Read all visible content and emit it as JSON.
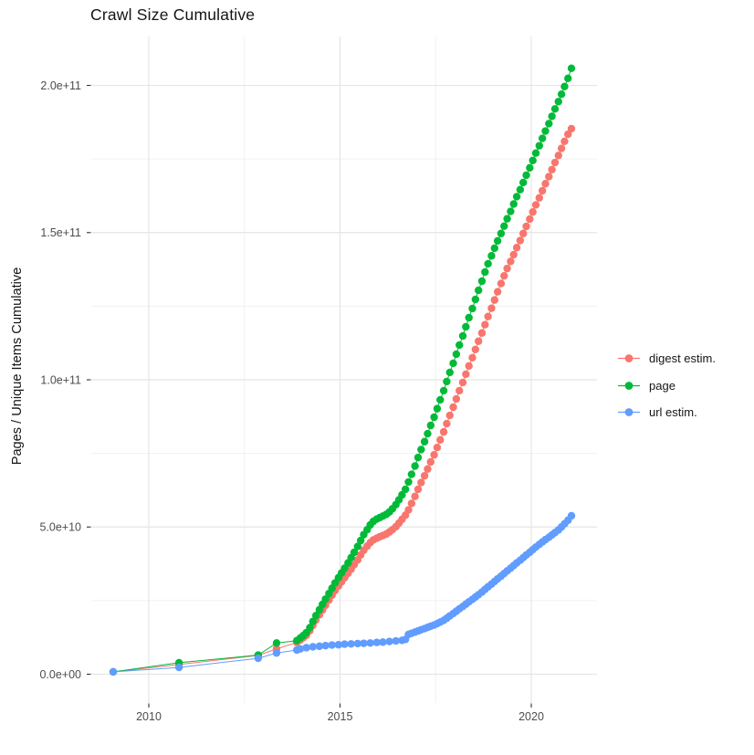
{
  "title": "Crawl Size Cumulative",
  "y_axis": {
    "title": "Pages / Unique Items Cumulative",
    "ticks": [
      {
        "label": "0.0e+00",
        "value": 0
      },
      {
        "label": "5.0e+10",
        "value": 50
      },
      {
        "label": "1.0e+11",
        "value": 100
      },
      {
        "label": "1.5e+11",
        "value": 150
      },
      {
        "label": "2.0e+11",
        "value": 200
      }
    ],
    "minor_ticks": [
      25,
      75,
      125,
      175
    ]
  },
  "x_axis": {
    "ticks": [
      {
        "label": "2010",
        "value": 2010
      },
      {
        "label": "2015",
        "value": 2015
      },
      {
        "label": "2020",
        "value": 2020
      }
    ],
    "minor_ticks": [
      2012.5,
      2017.5
    ]
  },
  "legend": {
    "items": [
      {
        "label": "digest estim.",
        "color": "#F8766D"
      },
      {
        "label": "page",
        "color": "#00BA38"
      },
      {
        "label": "url estim.",
        "color": "#619CFF"
      }
    ]
  },
  "chart_data": {
    "type": "line",
    "title": "Crawl Size Cumulative",
    "xlabel": "",
    "ylabel": "Pages / Unique Items Cumulative",
    "x_unit": "year (decimal)",
    "values_unit": "items, in billions (1e9); y tick 5.0e+10 = 50",
    "xlim": [
      2008.5,
      2021.6
    ],
    "ylim_e9": [
      -10,
      216
    ],
    "grid": true,
    "legend_position": "right",
    "series": [
      {
        "name": "digest estim.",
        "color": "#F8766D",
        "points": [
          [
            2009.07,
            0.8
          ],
          [
            2010.79,
            3.3
          ],
          [
            2012.86,
            6.4
          ],
          [
            2013.34,
            8.6
          ],
          [
            2013.87,
            10.8
          ],
          [
            2013.96,
            11.6
          ],
          [
            2014.04,
            12.4
          ],
          [
            2014.12,
            13.2
          ],
          [
            2014.21,
            14.8
          ],
          [
            2014.29,
            16.6
          ],
          [
            2014.37,
            18.4
          ],
          [
            2014.46,
            20.2
          ],
          [
            2014.54,
            21.8
          ],
          [
            2014.62,
            23.4
          ],
          [
            2014.71,
            25.2
          ],
          [
            2014.79,
            26.8
          ],
          [
            2014.87,
            28.4
          ],
          [
            2014.96,
            30.0
          ],
          [
            2015.04,
            31.4
          ],
          [
            2015.12,
            32.8
          ],
          [
            2015.21,
            34.3
          ],
          [
            2015.29,
            35.7
          ],
          [
            2015.37,
            37.2
          ],
          [
            2015.46,
            38.8
          ],
          [
            2015.54,
            40.5
          ],
          [
            2015.62,
            42.1
          ],
          [
            2015.71,
            43.5
          ],
          [
            2015.79,
            44.7
          ],
          [
            2015.87,
            45.6
          ],
          [
            2015.96,
            46.2
          ],
          [
            2016.04,
            46.7
          ],
          [
            2016.12,
            47.1
          ],
          [
            2016.21,
            47.6
          ],
          [
            2016.29,
            48.3
          ],
          [
            2016.37,
            49.1
          ],
          [
            2016.46,
            50.1
          ],
          [
            2016.54,
            51.3
          ],
          [
            2016.62,
            52.6
          ],
          [
            2016.71,
            54.0
          ],
          [
            2016.79,
            55.8
          ],
          [
            2016.87,
            58.0
          ],
          [
            2016.96,
            60.4
          ],
          [
            2017.04,
            62.8
          ],
          [
            2017.12,
            65.1
          ],
          [
            2017.21,
            67.4
          ],
          [
            2017.29,
            69.7
          ],
          [
            2017.37,
            72.1
          ],
          [
            2017.46,
            74.5
          ],
          [
            2017.54,
            77.0
          ],
          [
            2017.62,
            79.6
          ],
          [
            2017.71,
            82.3
          ],
          [
            2017.79,
            85.1
          ],
          [
            2017.87,
            87.9
          ],
          [
            2017.96,
            90.7
          ],
          [
            2018.04,
            93.5
          ],
          [
            2018.12,
            96.3
          ],
          [
            2018.21,
            99.1
          ],
          [
            2018.29,
            101.9
          ],
          [
            2018.37,
            104.7
          ],
          [
            2018.46,
            107.5
          ],
          [
            2018.54,
            110.3
          ],
          [
            2018.62,
            113.1
          ],
          [
            2018.71,
            115.9
          ],
          [
            2018.79,
            118.7
          ],
          [
            2018.87,
            121.5
          ],
          [
            2018.96,
            124.3
          ],
          [
            2019.04,
            127.1
          ],
          [
            2019.12,
            129.9
          ],
          [
            2019.21,
            132.7
          ],
          [
            2019.29,
            135.3
          ],
          [
            2019.37,
            137.8
          ],
          [
            2019.46,
            140.2
          ],
          [
            2019.54,
            142.5
          ],
          [
            2019.62,
            144.9
          ],
          [
            2019.71,
            147.3
          ],
          [
            2019.79,
            149.7
          ],
          [
            2019.87,
            152.1
          ],
          [
            2019.96,
            154.6
          ],
          [
            2020.04,
            157.0
          ],
          [
            2020.12,
            159.4
          ],
          [
            2020.21,
            161.8
          ],
          [
            2020.29,
            164.2
          ],
          [
            2020.37,
            166.6
          ],
          [
            2020.46,
            169.0
          ],
          [
            2020.54,
            171.4
          ],
          [
            2020.62,
            173.8
          ],
          [
            2020.71,
            176.2
          ],
          [
            2020.79,
            178.6
          ],
          [
            2020.87,
            181.0
          ],
          [
            2020.96,
            183.4
          ],
          [
            2021.05,
            185.3
          ]
        ]
      },
      {
        "name": "page",
        "color": "#00BA38",
        "points": [
          [
            2009.07,
            0.8
          ],
          [
            2010.79,
            3.9
          ],
          [
            2012.86,
            6.5
          ],
          [
            2013.34,
            10.6
          ],
          [
            2013.87,
            11.4
          ],
          [
            2013.96,
            12.3
          ],
          [
            2014.04,
            13.1
          ],
          [
            2014.12,
            14.1
          ],
          [
            2014.21,
            15.8
          ],
          [
            2014.29,
            17.9
          ],
          [
            2014.37,
            19.9
          ],
          [
            2014.46,
            21.9
          ],
          [
            2014.54,
            23.7
          ],
          [
            2014.62,
            25.5
          ],
          [
            2014.71,
            27.4
          ],
          [
            2014.79,
            29.2
          ],
          [
            2014.87,
            31.0
          ],
          [
            2014.96,
            32.8
          ],
          [
            2015.04,
            34.4
          ],
          [
            2015.12,
            36.0
          ],
          [
            2015.21,
            37.8
          ],
          [
            2015.29,
            39.6
          ],
          [
            2015.37,
            41.4
          ],
          [
            2015.46,
            43.4
          ],
          [
            2015.54,
            45.4
          ],
          [
            2015.62,
            47.4
          ],
          [
            2015.71,
            49.1
          ],
          [
            2015.79,
            50.7
          ],
          [
            2015.87,
            51.9
          ],
          [
            2015.96,
            52.7
          ],
          [
            2016.04,
            53.2
          ],
          [
            2016.12,
            53.7
          ],
          [
            2016.21,
            54.3
          ],
          [
            2016.29,
            55.1
          ],
          [
            2016.37,
            56.2
          ],
          [
            2016.46,
            57.6
          ],
          [
            2016.54,
            59.2
          ],
          [
            2016.62,
            60.9
          ],
          [
            2016.71,
            62.8
          ],
          [
            2016.79,
            65.3
          ],
          [
            2016.87,
            67.9
          ],
          [
            2016.96,
            70.7
          ],
          [
            2017.04,
            73.6
          ],
          [
            2017.12,
            76.3
          ],
          [
            2017.21,
            79.0
          ],
          [
            2017.29,
            81.7
          ],
          [
            2017.37,
            84.5
          ],
          [
            2017.46,
            87.3
          ],
          [
            2017.54,
            90.2
          ],
          [
            2017.62,
            93.2
          ],
          [
            2017.71,
            96.3
          ],
          [
            2017.79,
            99.4
          ],
          [
            2017.87,
            102.5
          ],
          [
            2017.96,
            105.6
          ],
          [
            2018.04,
            108.7
          ],
          [
            2018.12,
            111.8
          ],
          [
            2018.21,
            114.9
          ],
          [
            2018.29,
            118.0
          ],
          [
            2018.37,
            121.1
          ],
          [
            2018.46,
            124.2
          ],
          [
            2018.54,
            127.3
          ],
          [
            2018.62,
            130.4
          ],
          [
            2018.71,
            133.5
          ],
          [
            2018.79,
            136.6
          ],
          [
            2018.87,
            139.4
          ],
          [
            2018.96,
            142.1
          ],
          [
            2019.04,
            144.7
          ],
          [
            2019.12,
            147.2
          ],
          [
            2019.21,
            149.7
          ],
          [
            2019.29,
            152.2
          ],
          [
            2019.37,
            154.7
          ],
          [
            2019.46,
            157.2
          ],
          [
            2019.54,
            159.7
          ],
          [
            2019.62,
            162.2
          ],
          [
            2019.71,
            164.6
          ],
          [
            2019.79,
            167.0
          ],
          [
            2019.87,
            169.5
          ],
          [
            2019.96,
            172.0
          ],
          [
            2020.04,
            174.5
          ],
          [
            2020.12,
            177.0
          ],
          [
            2020.21,
            179.5
          ],
          [
            2020.29,
            182.0
          ],
          [
            2020.37,
            184.5
          ],
          [
            2020.46,
            187.0
          ],
          [
            2020.54,
            189.5
          ],
          [
            2020.62,
            192.0
          ],
          [
            2020.71,
            194.5
          ],
          [
            2020.79,
            197.0
          ],
          [
            2020.87,
            199.6
          ],
          [
            2020.96,
            202.4
          ],
          [
            2021.05,
            205.8
          ]
        ]
      },
      {
        "name": "url estim.",
        "color": "#619CFF",
        "points": [
          [
            2009.07,
            0.8
          ],
          [
            2010.79,
            2.3
          ],
          [
            2012.86,
            5.4
          ],
          [
            2013.34,
            7.2
          ],
          [
            2013.87,
            8.2
          ],
          [
            2013.96,
            8.6
          ],
          [
            2014.12,
            9.0
          ],
          [
            2014.29,
            9.3
          ],
          [
            2014.46,
            9.5
          ],
          [
            2014.62,
            9.7
          ],
          [
            2014.79,
            9.9
          ],
          [
            2014.96,
            10.0
          ],
          [
            2015.12,
            10.2
          ],
          [
            2015.29,
            10.3
          ],
          [
            2015.46,
            10.4
          ],
          [
            2015.62,
            10.5
          ],
          [
            2015.79,
            10.6
          ],
          [
            2015.96,
            10.8
          ],
          [
            2016.12,
            10.9
          ],
          [
            2016.29,
            11.1
          ],
          [
            2016.46,
            11.3
          ],
          [
            2016.62,
            11.5
          ],
          [
            2016.71,
            11.8
          ],
          [
            2016.79,
            13.5
          ],
          [
            2016.87,
            13.9
          ],
          [
            2016.96,
            14.3
          ],
          [
            2017.04,
            14.7
          ],
          [
            2017.12,
            15.1
          ],
          [
            2017.21,
            15.5
          ],
          [
            2017.29,
            15.9
          ],
          [
            2017.37,
            16.3
          ],
          [
            2017.46,
            16.7
          ],
          [
            2017.54,
            17.2
          ],
          [
            2017.62,
            17.7
          ],
          [
            2017.71,
            18.3
          ],
          [
            2017.79,
            19.0
          ],
          [
            2017.87,
            19.8
          ],
          [
            2017.96,
            20.6
          ],
          [
            2018.04,
            21.4
          ],
          [
            2018.12,
            22.2
          ],
          [
            2018.21,
            23.0
          ],
          [
            2018.29,
            23.8
          ],
          [
            2018.37,
            24.6
          ],
          [
            2018.46,
            25.4
          ],
          [
            2018.54,
            26.2
          ],
          [
            2018.62,
            27.0
          ],
          [
            2018.71,
            27.9
          ],
          [
            2018.79,
            28.8
          ],
          [
            2018.87,
            29.7
          ],
          [
            2018.96,
            30.6
          ],
          [
            2019.04,
            31.5
          ],
          [
            2019.12,
            32.4
          ],
          [
            2019.21,
            33.3
          ],
          [
            2019.29,
            34.2
          ],
          [
            2019.37,
            35.1
          ],
          [
            2019.46,
            36.0
          ],
          [
            2019.54,
            36.9
          ],
          [
            2019.62,
            37.8
          ],
          [
            2019.71,
            38.7
          ],
          [
            2019.79,
            39.6
          ],
          [
            2019.87,
            40.5
          ],
          [
            2019.96,
            41.4
          ],
          [
            2020.04,
            42.3
          ],
          [
            2020.12,
            43.2
          ],
          [
            2020.21,
            44.1
          ],
          [
            2020.29,
            44.9
          ],
          [
            2020.37,
            45.7
          ],
          [
            2020.46,
            46.5
          ],
          [
            2020.54,
            47.3
          ],
          [
            2020.62,
            48.1
          ],
          [
            2020.71,
            49.0
          ],
          [
            2020.79,
            50.0
          ],
          [
            2020.87,
            51.1
          ],
          [
            2020.96,
            52.3
          ],
          [
            2021.05,
            53.8
          ]
        ]
      }
    ]
  }
}
